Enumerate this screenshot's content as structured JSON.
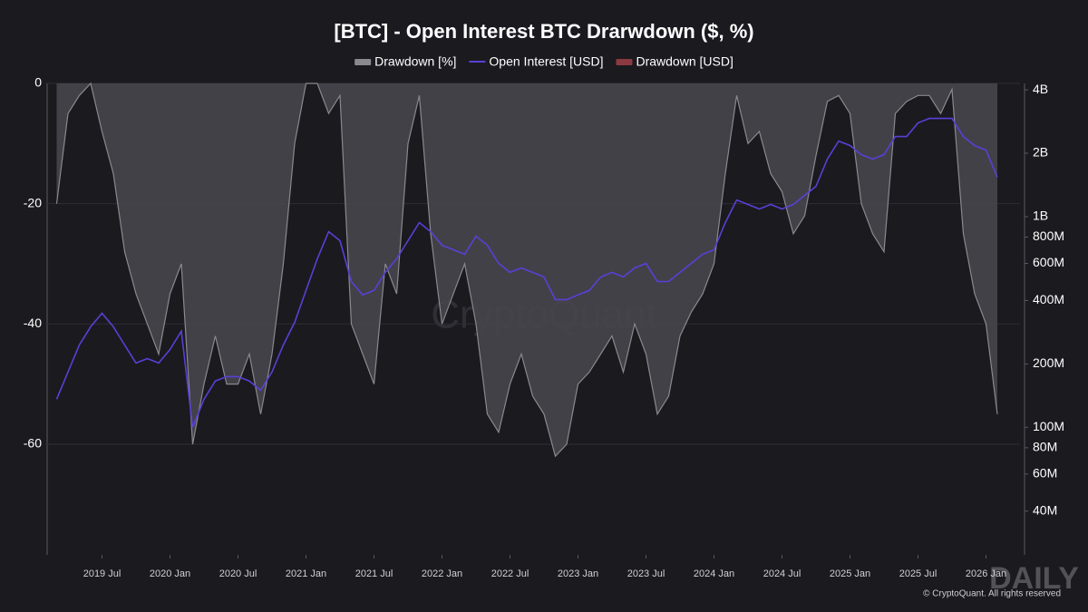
{
  "chart_data": {
    "type": "line",
    "title": "[BTC] - Open Interest BTC Drarwdown ($, %)",
    "x": [
      "2019-03",
      "2019-04",
      "2019-05",
      "2019-06",
      "2019-07",
      "2019-08",
      "2019-09",
      "2019-10",
      "2019-11",
      "2019-12",
      "2020-01",
      "2020-02",
      "2020-03",
      "2020-04",
      "2020-05",
      "2020-06",
      "2020-07",
      "2020-08",
      "2020-09",
      "2020-10",
      "2020-11",
      "2020-12",
      "2021-01",
      "2021-02",
      "2021-03",
      "2021-04",
      "2021-05",
      "2021-06",
      "2021-07",
      "2021-08",
      "2021-09",
      "2021-10",
      "2021-11",
      "2021-12",
      "2022-01",
      "2022-02",
      "2022-03",
      "2022-04",
      "2022-05",
      "2022-06",
      "2022-07",
      "2022-08",
      "2022-09",
      "2022-10",
      "2022-11",
      "2022-12",
      "2023-01",
      "2023-02",
      "2023-03",
      "2023-04",
      "2023-05",
      "2023-06",
      "2023-07",
      "2023-08",
      "2023-09",
      "2023-10",
      "2023-11",
      "2023-12",
      "2024-01",
      "2024-02",
      "2024-03",
      "2024-04",
      "2024-05",
      "2024-06",
      "2024-07",
      "2024-08",
      "2024-09",
      "2024-10",
      "2024-11",
      "2024-12",
      "2025-01",
      "2025-02",
      "2025-03",
      "2025-04",
      "2025-05",
      "2025-06",
      "2025-07",
      "2025-08",
      "2025-09",
      "2025-10",
      "2025-11",
      "2025-12",
      "2026-01",
      "2026-02"
    ],
    "series": [
      {
        "name": "Drawdown [%]",
        "color": "#8a898f",
        "axis": "y",
        "values": [
          -20,
          -5,
          -2,
          0,
          -8,
          -15,
          -28,
          -35,
          -40,
          -45,
          -35,
          -30,
          -60,
          -50,
          -42,
          -50,
          -50,
          -45,
          -55,
          -45,
          -30,
          -10,
          0,
          0,
          -5,
          -2,
          -40,
          -45,
          -50,
          -30,
          -35,
          -10,
          -2,
          -25,
          -40,
          -35,
          -30,
          -40,
          -55,
          -58,
          -50,
          -45,
          -52,
          -55,
          -62,
          -60,
          -50,
          -48,
          -45,
          -42,
          -48,
          -40,
          -45,
          -55,
          -52,
          -42,
          -38,
          -35,
          -30,
          -15,
          -2,
          -10,
          -8,
          -15,
          -18,
          -25,
          -22,
          -12,
          -3,
          -2,
          -5,
          -20,
          -25,
          -28,
          -5,
          -3,
          -2,
          -2,
          -5,
          -1,
          -25,
          -35,
          -40,
          -55
        ]
      },
      {
        "name": "Open Interest [USD]",
        "color": "#5b3fd6",
        "axis": "y2",
        "values": [
          136000000,
          183000000,
          246000000,
          300000000,
          348000000,
          300000000,
          246000000,
          202000000,
          212000000,
          202000000,
          234000000,
          286000000,
          100000000,
          136000000,
          166000000,
          174000000,
          174000000,
          166000000,
          150000000,
          183000000,
          246000000,
          315000000,
          446000000,
          631000000,
          849000000,
          769000000,
          492000000,
          425000000,
          446000000,
          544000000,
          631000000,
          769000000,
          937000000,
          849000000,
          732000000,
          696000000,
          663000000,
          808000000,
          732000000,
          600000000,
          544000000,
          571000000,
          544000000,
          517000000,
          404000000,
          404000000,
          425000000,
          446000000,
          517000000,
          544000000,
          517000000,
          571000000,
          600000000,
          492000000,
          492000000,
          544000000,
          600000000,
          663000000,
          696000000,
          937000000,
          1200000000,
          1143000000,
          1087000000,
          1143000000,
          1087000000,
          1143000000,
          1262000000,
          1393000000,
          1875000000,
          2285000000,
          2175000000,
          1970000000,
          1875000000,
          1970000000,
          2401000000,
          2401000000,
          2786000000,
          2926000000,
          2926000000,
          2926000000,
          2401000000,
          2175000000,
          2069000000,
          1538000000
        ]
      },
      {
        "name": "Drawdown [USD]",
        "color": "#8b3a3f",
        "axis": "y",
        "values": [
          null,
          null,
          null,
          null,
          null,
          null,
          null,
          null,
          null,
          null,
          null,
          null,
          null,
          null,
          null,
          null,
          null,
          null,
          null,
          null,
          null,
          null,
          null,
          null,
          null,
          null,
          null,
          null,
          null,
          null,
          null,
          null,
          null,
          null,
          null,
          null,
          null,
          null,
          null,
          null,
          null,
          null,
          null,
          null,
          null,
          null,
          null,
          null,
          null,
          null,
          null,
          null,
          null,
          null,
          null,
          null,
          null,
          null,
          null,
          null,
          null,
          null,
          null,
          null,
          null,
          null,
          null,
          null,
          null,
          null,
          null,
          null,
          null,
          null,
          null,
          null,
          null,
          null,
          null,
          null,
          null,
          null,
          null,
          null
        ]
      }
    ],
    "xlim": [
      "2019-02",
      "2026-04"
    ],
    "xticks": [
      {
        "value": "2019-07",
        "label": "2019 Jul"
      },
      {
        "value": "2020-01",
        "label": "2020 Jan"
      },
      {
        "value": "2020-07",
        "label": "2020 Jul"
      },
      {
        "value": "2021-01",
        "label": "2021 Jan"
      },
      {
        "value": "2021-07",
        "label": "2021 Jul"
      },
      {
        "value": "2022-01",
        "label": "2022 Jan"
      },
      {
        "value": "2022-07",
        "label": "2022 Jul"
      },
      {
        "value": "2023-01",
        "label": "2023 Jan"
      },
      {
        "value": "2023-07",
        "label": "2023 Jul"
      },
      {
        "value": "2024-01",
        "label": "2024 Jan"
      },
      {
        "value": "2024-07",
        "label": "2024 Jul"
      },
      {
        "value": "2025-01",
        "label": "2025 Jan"
      },
      {
        "value": "2025-07",
        "label": "2025 Jul"
      },
      {
        "value": "2026-01",
        "label": "2026 Jan"
      }
    ],
    "ylim": [
      -78.4,
      0
    ],
    "yticks": [
      0,
      -20,
      -40,
      -60
    ],
    "y2lim": [
      24800000,
      4290000000
    ],
    "y2log": true,
    "y2ticks": [
      {
        "value": 4000000000,
        "label": "4B"
      },
      {
        "value": 2000000000,
        "label": "2B"
      },
      {
        "value": 1000000000,
        "label": "1B"
      },
      {
        "value": 800000000,
        "label": "800M"
      },
      {
        "value": 600000000,
        "label": "600M"
      },
      {
        "value": 400000000,
        "label": "400M"
      },
      {
        "value": 200000000,
        "label": "200M"
      },
      {
        "value": 100000000,
        "label": "100M"
      },
      {
        "value": 80000000,
        "label": "80M"
      },
      {
        "value": 60000000,
        "label": "60M"
      },
      {
        "value": 40000000,
        "label": "40M"
      }
    ],
    "grid": true,
    "legend": "top",
    "watermark": "CryptoQuant",
    "copyright": "© CryptoQuant. All rights reserved",
    "logo": "DAILY"
  }
}
